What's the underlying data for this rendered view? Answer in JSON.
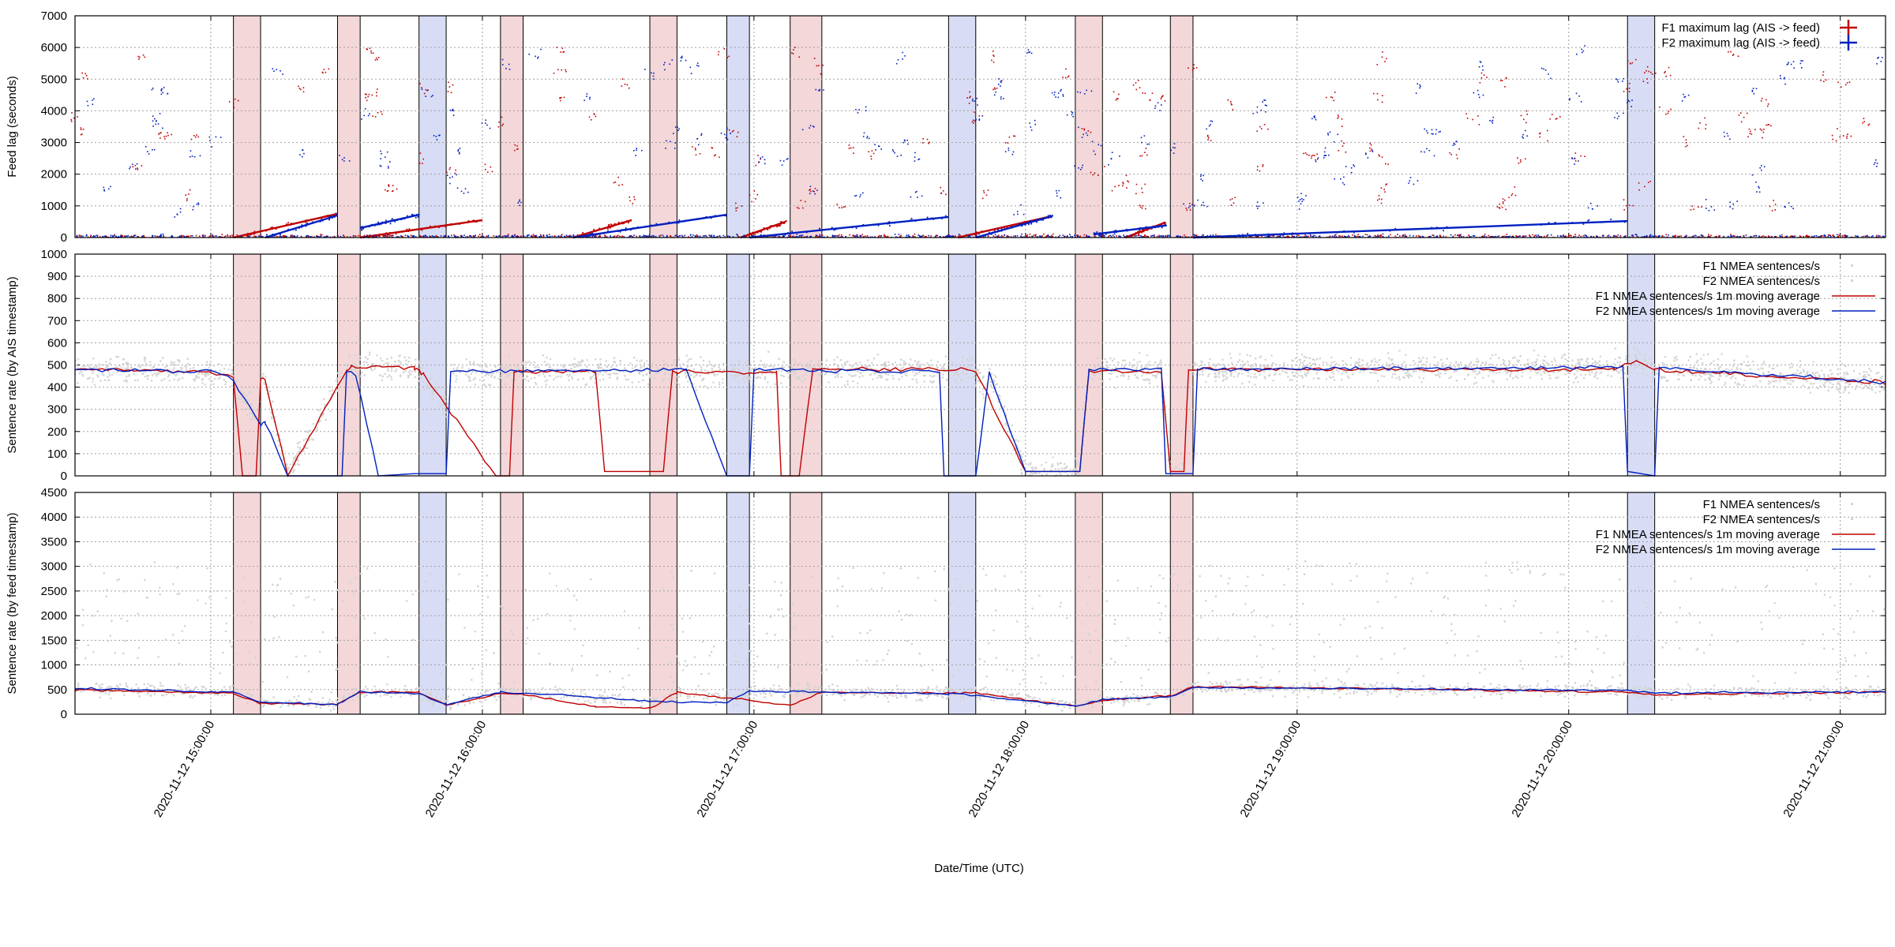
{
  "xaxis": {
    "label": "Date/Time (UTC)",
    "range": [
      "2020-11-12 14:30:00",
      "2020-11-12 21:10:00"
    ],
    "ticks": [
      "2020-11-12 15:00:00",
      "2020-11-12 16:00:00",
      "2020-11-12 17:00:00",
      "2020-11-12 18:00:00",
      "2020-11-12 19:00:00",
      "2020-11-12 20:00:00",
      "2020-11-12 21:00:00"
    ]
  },
  "colors": {
    "f1": "#c00000",
    "f2": "#0020c0",
    "f1_band": "#f4d7d9",
    "f2_band": "#d8ddf5",
    "scatter": "#d4d4d4"
  },
  "outage_bands": [
    {
      "feed": "F1",
      "start": "2020-11-12 15:05:00",
      "end": "2020-11-12 15:11:00"
    },
    {
      "feed": "F1",
      "start": "2020-11-12 15:28:00",
      "end": "2020-11-12 15:33:00"
    },
    {
      "feed": "F2",
      "start": "2020-11-12 15:46:00",
      "end": "2020-11-12 15:52:00"
    },
    {
      "feed": "F1",
      "start": "2020-11-12 16:04:00",
      "end": "2020-11-12 16:09:00"
    },
    {
      "feed": "F1",
      "start": "2020-11-12 16:37:00",
      "end": "2020-11-12 16:43:00"
    },
    {
      "feed": "F2",
      "start": "2020-11-12 16:54:00",
      "end": "2020-11-12 16:59:00"
    },
    {
      "feed": "F1",
      "start": "2020-11-12 17:08:00",
      "end": "2020-11-12 17:15:00"
    },
    {
      "feed": "F2",
      "start": "2020-11-12 17:43:00",
      "end": "2020-11-12 17:49:00"
    },
    {
      "feed": "F1",
      "start": "2020-11-12 18:11:00",
      "end": "2020-11-12 18:17:00"
    },
    {
      "feed": "F1",
      "start": "2020-11-12 18:32:00",
      "end": "2020-11-12 18:37:00"
    },
    {
      "feed": "F2",
      "start": "2020-11-12 20:13:00",
      "end": "2020-11-12 20:19:00"
    }
  ],
  "chart_data": [
    {
      "type": "scatter",
      "ylabel": "Feed lag (seconds)",
      "ylim": [
        0,
        7000
      ],
      "yticks": [
        0,
        1000,
        2000,
        3000,
        4000,
        5000,
        6000,
        7000
      ],
      "grid": true,
      "legend_position": "top-right",
      "series": [
        {
          "name": "F1 maximum lag (AIS -> feed)",
          "color": "#c00000",
          "style": "cross",
          "segments": [
            {
              "x": [
                "2020-11-12 15:05:00",
                "2020-11-12 15:28:00"
              ],
              "y": [
                0,
                750
              ]
            },
            {
              "x": [
                "2020-11-12 15:33:00",
                "2020-11-12 16:00:00"
              ],
              "y": [
                0,
                550
              ]
            },
            {
              "x": [
                "2020-11-12 16:20:00",
                "2020-11-12 16:33:00"
              ],
              "y": [
                0,
                550
              ]
            },
            {
              "x": [
                "2020-11-12 16:57:00",
                "2020-11-12 17:07:00"
              ],
              "y": [
                0,
                500
              ]
            },
            {
              "x": [
                "2020-11-12 17:45:00",
                "2020-11-12 18:05:00"
              ],
              "y": [
                0,
                650
              ]
            },
            {
              "x": [
                "2020-11-12 18:22:00",
                "2020-11-12 18:31:00"
              ],
              "y": [
                0,
                480
              ]
            }
          ]
        },
        {
          "name": "F2 maximum lag (AIS -> feed)",
          "color": "#0020c0",
          "style": "cross",
          "segments": [
            {
              "x": [
                "2020-11-12 15:12:00",
                "2020-11-12 15:28:00"
              ],
              "y": [
                0,
                700
              ]
            },
            {
              "x": [
                "2020-11-12 15:33:00",
                "2020-11-12 15:46:00"
              ],
              "y": [
                300,
                720
              ]
            },
            {
              "x": [
                "2020-11-12 16:20:00",
                "2020-11-12 16:54:00"
              ],
              "y": [
                0,
                720
              ]
            },
            {
              "x": [
                "2020-11-12 16:59:00",
                "2020-11-12 17:43:00"
              ],
              "y": [
                0,
                650
              ]
            },
            {
              "x": [
                "2020-11-12 17:49:00",
                "2020-11-12 18:06:00"
              ],
              "y": [
                0,
                680
              ]
            },
            {
              "x": [
                "2020-11-12 18:15:00",
                "2020-11-12 18:31:00"
              ],
              "y": [
                100,
                380
              ]
            },
            {
              "x": [
                "2020-11-12 18:37:00",
                "2020-11-12 20:13:00"
              ],
              "y": [
                0,
                520
              ]
            }
          ]
        }
      ]
    },
    {
      "type": "line",
      "ylabel": "Sentence rate (by AIS timestamp)",
      "ylim": [
        0,
        1000
      ],
      "yticks": [
        0,
        100,
        200,
        300,
        400,
        500,
        600,
        700,
        800,
        900,
        1000
      ],
      "grid": true,
      "legend_position": "top-right",
      "series": [
        {
          "name": "F1 NMEA sentences/s",
          "color": "#d4d4d4",
          "style": "points"
        },
        {
          "name": "F2 NMEA sentences/s",
          "color": "#d4d4d4",
          "style": "points"
        },
        {
          "name": "F1 NMEA sentences/s 1m moving average",
          "color": "#c00000",
          "style": "line",
          "x": [
            "2020-11-12 14:30:00",
            "2020-11-12 15:00:00",
            "2020-11-12 15:05:00",
            "2020-11-12 15:07:00",
            "2020-11-12 15:10:00",
            "2020-11-12 15:11:00",
            "2020-11-12 15:12:00",
            "2020-11-12 15:17:00",
            "2020-11-12 15:30:00",
            "2020-11-12 15:31:00",
            "2020-11-12 15:45:00",
            "2020-11-12 15:46:00",
            "2020-11-12 15:47:00",
            "2020-11-12 16:03:00",
            "2020-11-12 16:06:00",
            "2020-11-12 16:07:00",
            "2020-11-12 16:25:00",
            "2020-11-12 16:27:00",
            "2020-11-12 16:40:00",
            "2020-11-12 16:42:00",
            "2020-11-12 17:05:00",
            "2020-11-12 17:06:00",
            "2020-11-12 17:10:00",
            "2020-11-12 17:13:00",
            "2020-11-12 17:47:00",
            "2020-11-12 17:49:00",
            "2020-11-12 18:00:00",
            "2020-11-12 18:12:00",
            "2020-11-12 18:14:00",
            "2020-11-12 18:30:00",
            "2020-11-12 18:32:00",
            "2020-11-12 18:35:00",
            "2020-11-12 18:36:00",
            "2020-11-12 20:10:00",
            "2020-11-12 20:15:00",
            "2020-11-12 20:19:00",
            "2020-11-12 21:10:00"
          ],
          "y": [
            480,
            470,
            440,
            0,
            0,
            430,
            430,
            0,
            480,
            490,
            490,
            470,
            460,
            0,
            0,
            470,
            470,
            20,
            20,
            470,
            470,
            0,
            0,
            480,
            480,
            470,
            20,
            20,
            470,
            470,
            20,
            20,
            480,
            480,
            520,
            480,
            420
          ]
        },
        {
          "name": "F2 NMEA sentences/s 1m moving average",
          "color": "#0020c0",
          "style": "line",
          "x": [
            "2020-11-12 14:30:00",
            "2020-11-12 15:00:00",
            "2020-11-12 15:05:00",
            "2020-11-12 15:11:00",
            "2020-11-12 15:12:00",
            "2020-11-12 15:17:00",
            "2020-11-12 15:29:00",
            "2020-11-12 15:30:00",
            "2020-11-12 15:32:00",
            "2020-11-12 15:37:00",
            "2020-11-12 15:45:00",
            "2020-11-12 15:52:00",
            "2020-11-12 15:53:00",
            "2020-11-12 16:40:00",
            "2020-11-12 16:45:00",
            "2020-11-12 16:54:00",
            "2020-11-12 16:59:00",
            "2020-11-12 17:00:00",
            "2020-11-12 17:41:00",
            "2020-11-12 17:42:00",
            "2020-11-12 17:49:00",
            "2020-11-12 17:52:00",
            "2020-11-12 18:00:00",
            "2020-11-12 18:12:00",
            "2020-11-12 18:14:00",
            "2020-11-12 18:30:00",
            "2020-11-12 18:31:00",
            "2020-11-12 18:37:00",
            "2020-11-12 18:38:00",
            "2020-11-12 20:12:00",
            "2020-11-12 20:13:00",
            "2020-11-12 20:19:00",
            "2020-11-12 20:20:00",
            "2020-11-12 21:10:00"
          ],
          "y": [
            480,
            470,
            430,
            230,
            240,
            0,
            0,
            470,
            460,
            0,
            10,
            10,
            470,
            480,
            480,
            0,
            0,
            480,
            470,
            0,
            0,
            470,
            20,
            20,
            480,
            480,
            10,
            10,
            480,
            490,
            20,
            0,
            490,
            420
          ]
        }
      ]
    },
    {
      "type": "line",
      "ylabel": "Sentence rate (by feed timestamp)",
      "ylim": [
        0,
        4500
      ],
      "yticks": [
        0,
        500,
        1000,
        1500,
        2000,
        2500,
        3000,
        3500,
        4000,
        4500
      ],
      "grid": true,
      "legend_position": "top-right",
      "series": [
        {
          "name": "F1 NMEA sentences/s",
          "color": "#d4d4d4",
          "style": "points"
        },
        {
          "name": "F2 NMEA sentences/s",
          "color": "#d4d4d4",
          "style": "points"
        },
        {
          "name": "F1 NMEA sentences/s 1m moving average",
          "color": "#c00000",
          "style": "line",
          "x": [
            "2020-11-12 14:30:00",
            "2020-11-12 15:05:00",
            "2020-11-12 15:11:00",
            "2020-11-12 15:28:00",
            "2020-11-12 15:33:00",
            "2020-11-12 15:46:00",
            "2020-11-12 15:52:00",
            "2020-11-12 16:04:00",
            "2020-11-12 16:09:00",
            "2020-11-12 16:25:00",
            "2020-11-12 16:37:00",
            "2020-11-12 16:43:00",
            "2020-11-12 17:08:00",
            "2020-11-12 17:15:00",
            "2020-11-12 17:43:00",
            "2020-11-12 17:49:00",
            "2020-11-12 18:11:00",
            "2020-11-12 18:17:00",
            "2020-11-12 18:32:00",
            "2020-11-12 18:37:00",
            "2020-11-12 20:13:00",
            "2020-11-12 20:19:00",
            "2020-11-12 21:10:00"
          ],
          "y": [
            500,
            420,
            220,
            200,
            450,
            450,
            180,
            420,
            400,
            150,
            120,
            450,
            180,
            450,
            420,
            430,
            160,
            280,
            380,
            560,
            450,
            400,
            450
          ]
        },
        {
          "name": "F2 NMEA sentences/s 1m moving average",
          "color": "#0020c0",
          "style": "line",
          "x": [
            "2020-11-12 14:30:00",
            "2020-11-12 15:05:00",
            "2020-11-12 15:11:00",
            "2020-11-12 15:28:00",
            "2020-11-12 15:33:00",
            "2020-11-12 15:46:00",
            "2020-11-12 15:52:00",
            "2020-11-12 16:04:00",
            "2020-11-12 16:20:00",
            "2020-11-12 16:37:00",
            "2020-11-12 16:54:00",
            "2020-11-12 16:59:00",
            "2020-11-12 17:43:00",
            "2020-11-12 17:49:00",
            "2020-11-12 18:11:00",
            "2020-11-12 18:17:00",
            "2020-11-12 18:32:00",
            "2020-11-12 18:37:00",
            "2020-11-12 20:13:00",
            "2020-11-12 20:19:00",
            "2020-11-12 21:10:00"
          ],
          "y": [
            520,
            450,
            250,
            200,
            460,
            420,
            200,
            440,
            380,
            260,
            230,
            470,
            420,
            380,
            160,
            300,
            350,
            540,
            480,
            430,
            450
          ]
        }
      ]
    }
  ]
}
